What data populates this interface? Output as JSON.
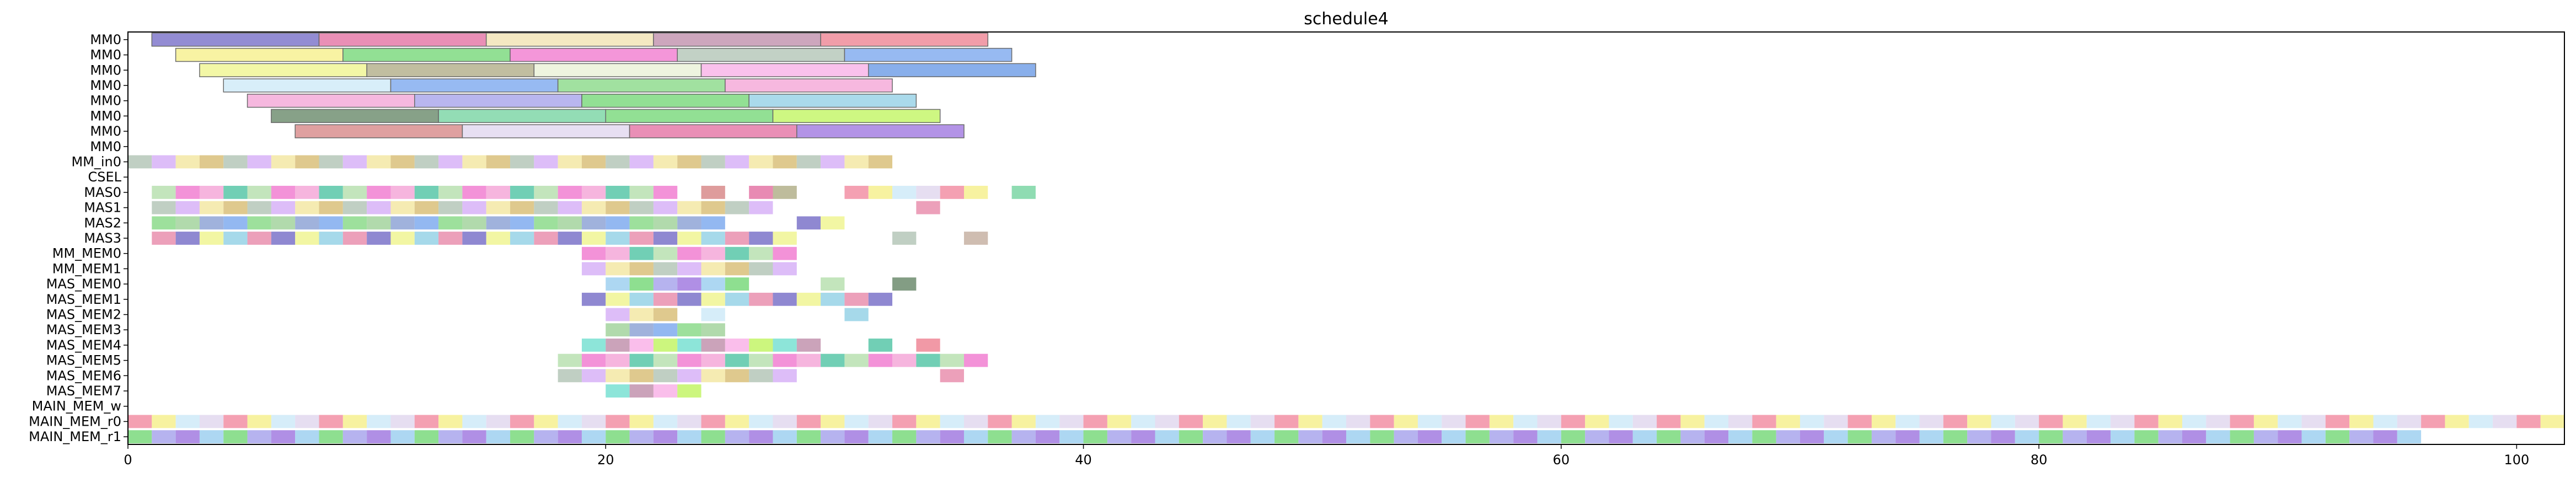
{
  "chart_data": {
    "type": "gantt",
    "title": "schedule4",
    "xlabel": "",
    "ylabel": "",
    "xlim": [
      0,
      102
    ],
    "x_ticks": [
      0,
      20,
      40,
      60,
      80,
      100
    ],
    "rows": [
      "MM0",
      "MM0",
      "MM0",
      "MM0",
      "MM0",
      "MM0",
      "MM0",
      "MM0",
      "MM_in0",
      "CSEL",
      "MAS0",
      "MAS1",
      "MAS2",
      "MAS3",
      "MM_MEM0",
      "MM_MEM1",
      "MAS_MEM0",
      "MAS_MEM1",
      "MAS_MEM2",
      "MAS_MEM3",
      "MAS_MEM4",
      "MAS_MEM5",
      "MAS_MEM6",
      "MAS_MEM7",
      "MAIN_MEM_w",
      "MAIN_MEM_r0",
      "MAIN_MEM_r1"
    ],
    "palette": [
      "#7b73c9",
      "#e476a6",
      "#f2e3b5",
      "#c293ae",
      "#ee8796",
      "#f6f08f",
      "#7ad97d",
      "#f17fd1",
      "#b5c7b8",
      "#80abef",
      "#f0f593",
      "#b3b08b",
      "#eaf2d8",
      "#f9b3e8",
      "#6f9de6",
      "#cfeaf8",
      "#a9a6ec",
      "#f4a8d8",
      "#d7b2f7",
      "#8cdb8b",
      "#97d2e6",
      "#6d8c6e",
      "#7bd6a5",
      "#c3f567",
      "#d88b8b",
      "#e2d8ef",
      "#a27be0",
      "#58c7a8",
      "#f3e8a5",
      "#a3d39e",
      "#e98fae",
      "#5cb66a",
      "#c7b2a3",
      "#79e0d2",
      "#e3a25e",
      "#f28fa5",
      "#9fd0f0",
      "#b8e0b0",
      "#d9c07a",
      "#8fa5d6"
    ],
    "bars": [
      [
        0,
        1,
        8,
        0
      ],
      [
        0,
        8,
        15,
        1
      ],
      [
        0,
        15,
        22,
        2
      ],
      [
        0,
        22,
        29,
        3
      ],
      [
        0,
        29,
        36,
        4
      ],
      [
        1,
        2,
        9,
        5
      ],
      [
        1,
        9,
        16,
        6
      ],
      [
        1,
        16,
        23,
        7
      ],
      [
        1,
        23,
        30,
        8
      ],
      [
        1,
        30,
        37,
        9
      ],
      [
        2,
        3,
        10,
        10
      ],
      [
        2,
        10,
        17,
        11
      ],
      [
        2,
        17,
        24,
        12
      ],
      [
        2,
        24,
        31,
        13
      ],
      [
        2,
        31,
        38,
        14
      ],
      [
        3,
        4,
        11,
        15
      ],
      [
        3,
        11,
        18,
        9
      ],
      [
        3,
        18,
        25,
        19
      ],
      [
        3,
        25,
        32,
        17
      ],
      [
        4,
        5,
        12,
        17
      ],
      [
        4,
        12,
        19,
        16
      ],
      [
        4,
        19,
        26,
        6
      ],
      [
        4,
        26,
        33,
        20
      ],
      [
        5,
        6,
        13,
        21
      ],
      [
        5,
        13,
        20,
        22
      ],
      [
        5,
        20,
        27,
        6
      ],
      [
        5,
        27,
        34,
        23
      ],
      [
        6,
        7,
        14,
        24
      ],
      [
        6,
        14,
        21,
        25
      ],
      [
        6,
        21,
        28,
        1
      ],
      [
        6,
        28,
        35,
        26
      ]
    ],
    "rows_cells": {
      "8": [
        0,
        1,
        2,
        3,
        4,
        5,
        6,
        7,
        8,
        9,
        10,
        11,
        12,
        13,
        14,
        15,
        16,
        17,
        18,
        19,
        20,
        21,
        22,
        23,
        24,
        25,
        26,
        27,
        28,
        29,
        30,
        31
      ],
      "10": [
        1,
        2,
        3,
        4,
        5,
        6,
        7,
        8,
        9,
        10,
        11,
        12,
        13,
        14,
        15,
        16,
        17,
        18,
        19,
        20,
        21,
        22,
        24,
        26,
        27,
        30,
        31,
        32,
        33,
        34,
        35,
        37
      ],
      "11": [
        1,
        2,
        3,
        4,
        5,
        6,
        7,
        8,
        9,
        10,
        11,
        12,
        13,
        14,
        15,
        16,
        17,
        18,
        19,
        20,
        21,
        22,
        23,
        24,
        25,
        26,
        33
      ],
      "12": [
        1,
        2,
        3,
        4,
        5,
        6,
        7,
        8,
        9,
        10,
        11,
        12,
        13,
        14,
        15,
        16,
        17,
        18,
        19,
        20,
        21,
        22,
        23,
        24,
        28,
        29
      ],
      "13": [
        1,
        2,
        3,
        4,
        5,
        6,
        7,
        8,
        9,
        10,
        11,
        12,
        13,
        14,
        15,
        16,
        17,
        18,
        19,
        20,
        21,
        22,
        23,
        24,
        25,
        26,
        27,
        32,
        35
      ],
      "14": [
        19,
        20,
        21,
        22,
        23,
        24,
        25,
        26,
        27
      ],
      "15": [
        19,
        20,
        21,
        22,
        23,
        24,
        25,
        26,
        27
      ],
      "16": [
        20,
        21,
        22,
        23,
        24,
        25,
        29,
        32
      ],
      "17": [
        19,
        20,
        21,
        22,
        23,
        24,
        25,
        26,
        27,
        28,
        29,
        30,
        31
      ],
      "18": [
        20,
        21,
        22,
        24,
        30
      ],
      "19": [
        20,
        21,
        22,
        23,
        24
      ],
      "20": [
        19,
        20,
        21,
        22,
        23,
        24,
        25,
        26,
        27,
        28,
        31,
        33
      ],
      "21": [
        18,
        19,
        20,
        21,
        22,
        23,
        24,
        25,
        26,
        27,
        28,
        29,
        30,
        31,
        32,
        33,
        34,
        35
      ],
      "22": [
        18,
        19,
        20,
        21,
        22,
        23,
        24,
        25,
        26,
        27,
        34
      ],
      "23": [
        20,
        21,
        22,
        23
      ],
      "25": "0-101",
      "26": "0-95"
    }
  }
}
